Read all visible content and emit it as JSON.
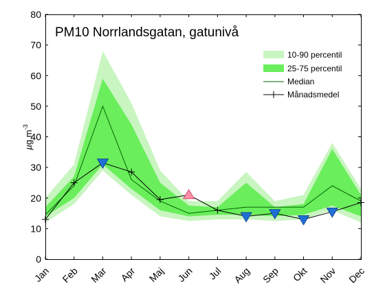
{
  "chart_data": {
    "type": "area",
    "title": "PM10 Norrlandsgatan, gatunivå",
    "ylabel": "µg m-3",
    "ylabel_parts": {
      "mu": "µ",
      "unit": "g m",
      "exp": "-3"
    },
    "ylim": [
      0,
      80
    ],
    "yticks": [
      0,
      10,
      20,
      30,
      40,
      50,
      60,
      70,
      80
    ],
    "categories": [
      "Jan",
      "Feb",
      "Mar",
      "Apr",
      "Maj",
      "Jun",
      "Jul",
      "Aug",
      "Sep",
      "Okt",
      "Nov",
      "Dec"
    ],
    "legend_position": "top-right",
    "series": [
      {
        "name": "10-90 percentil",
        "kind": "band",
        "color": "#c8f5c0",
        "low": [
          12,
          18,
          29,
          21,
          14,
          12.5,
          13,
          13,
          12.5,
          13,
          16,
          12
        ],
        "high": [
          20,
          31,
          68,
          51,
          29,
          19,
          19,
          28.5,
          19,
          21,
          38,
          23
        ]
      },
      {
        "name": "25-75 percentil",
        "kind": "band",
        "color": "#6aee5c",
        "low": [
          14,
          20,
          31,
          23,
          16,
          14,
          14.5,
          14.5,
          14,
          14.5,
          17.5,
          14
        ],
        "high": [
          17,
          27,
          59,
          44,
          25,
          17.5,
          17,
          25,
          17,
          18,
          36,
          21
        ]
      },
      {
        "name": "Median",
        "kind": "line",
        "color": "#006400",
        "values": [
          14.5,
          24,
          50,
          26,
          19,
          15,
          16,
          17,
          17,
          17,
          24,
          19
        ]
      },
      {
        "name": "Månadsmedel",
        "kind": "line-marker",
        "color": "#000000",
        "values": [
          13,
          25,
          31.5,
          28.5,
          19.5,
          21,
          16,
          14,
          15,
          13,
          15.5,
          18.5
        ]
      }
    ],
    "low_markers": {
      "color": "#1f6fd6",
      "shape": "triangle-down",
      "categories": [
        "Mar",
        "Aug",
        "Sep",
        "Okt",
        "Nov"
      ],
      "values": [
        31.5,
        14,
        15,
        13,
        15.5
      ]
    },
    "high_markers": {
      "color": "#ff8fa8",
      "shape": "triangle-up",
      "categories": [
        "Jun"
      ],
      "values": [
        21
      ]
    }
  }
}
